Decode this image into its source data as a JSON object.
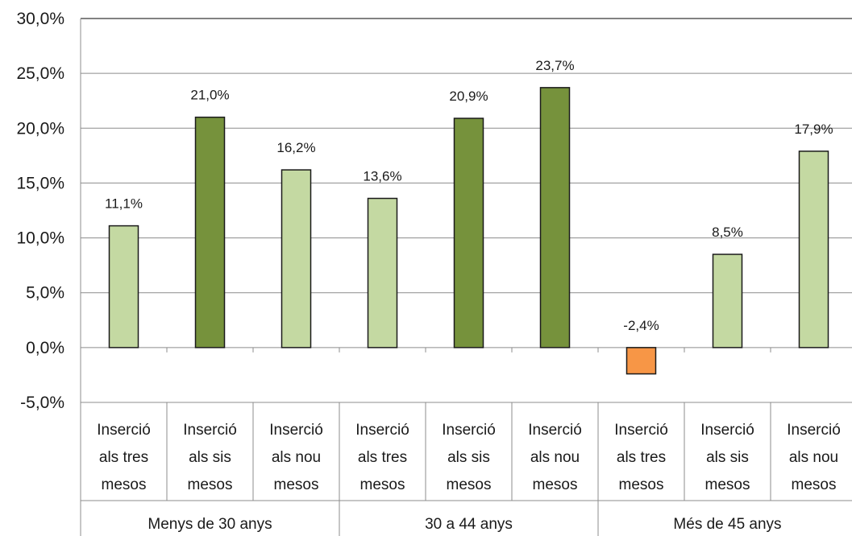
{
  "chart_data": {
    "type": "bar",
    "title": "",
    "xlabel": "",
    "ylabel": "",
    "ylim": [
      -5,
      30
    ],
    "yticks": [
      "-5,0%",
      "0,0%",
      "5,0%",
      "10,0%",
      "15,0%",
      "20,0%",
      "25,0%",
      "30,0%"
    ],
    "grid": true,
    "groups": [
      "Menys de 30 anys",
      "30 a 44 anys",
      "Més de 45 anys"
    ],
    "categories": [
      [
        "Inserció",
        "als tres",
        "mesos"
      ],
      [
        "Inserció",
        "als sis",
        "mesos"
      ],
      [
        "Inserció",
        "als nou",
        "mesos"
      ],
      [
        "Inserció",
        "als tres",
        "mesos"
      ],
      [
        "Inserció",
        "als sis",
        "mesos"
      ],
      [
        "Inserció",
        "als nou",
        "mesos"
      ],
      [
        "Inserció",
        "als tres",
        "mesos"
      ],
      [
        "Inserció",
        "als sis",
        "mesos"
      ],
      [
        "Inserció",
        "als nou",
        "mesos"
      ]
    ],
    "values": [
      11.1,
      21.0,
      16.2,
      13.6,
      20.9,
      23.7,
      -2.4,
      8.5,
      17.9
    ],
    "value_labels": [
      "11,1%",
      "21,0%",
      "16,2%",
      "13,6%",
      "20,9%",
      "23,7%",
      "-2,4%",
      "8,5%",
      "17,9%"
    ],
    "bar_colors": [
      "#c4d9a2",
      "#76923c",
      "#c4d9a2",
      "#c4d9a2",
      "#76923c",
      "#76923c",
      "#f79646",
      "#c4d9a2",
      "#c4d9a2"
    ]
  }
}
